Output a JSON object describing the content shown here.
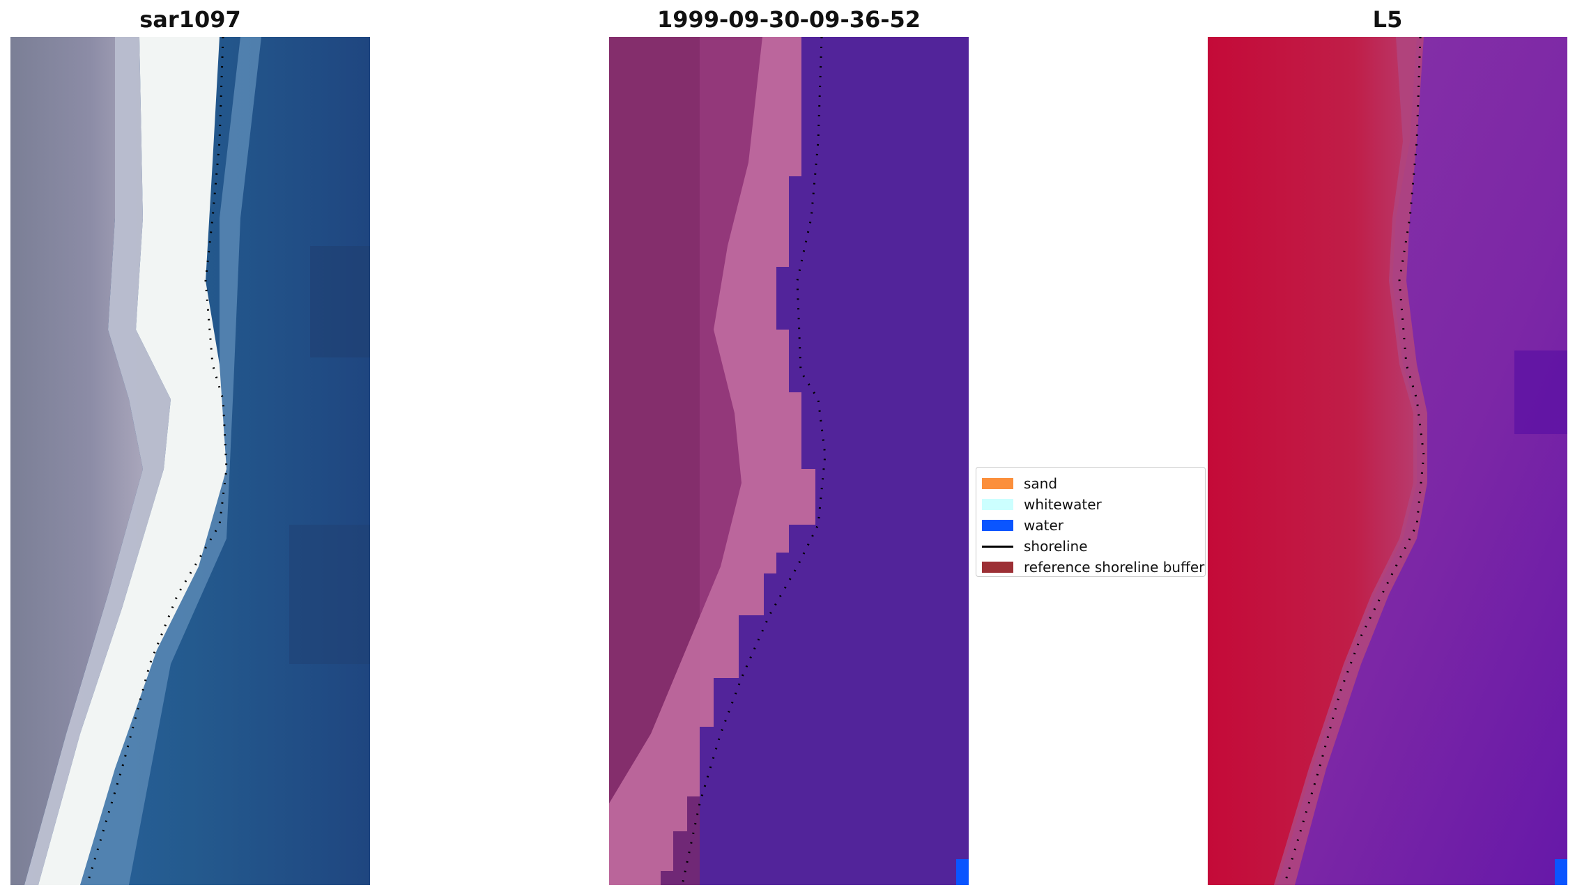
{
  "panels": [
    {
      "title": "sar1097",
      "kind": "rgb-image",
      "colors": {
        "sand_light": "#7b7f96",
        "sand_pale": "#a9a6bb",
        "whitewater": "#f2f5f4",
        "shallow": "#5c8bb6",
        "water": "#245a8e",
        "water_deep": "#1f3f72"
      }
    },
    {
      "title": "1999-09-30-09-36-52",
      "kind": "classified-image",
      "colors": {
        "land_dark": "#7e2b66",
        "land_mid": "#93387a",
        "land_pink": "#c06ba0",
        "water_class": "#52249a",
        "water_px": "#0a55ff"
      }
    },
    {
      "title": "L5",
      "kind": "index-image",
      "colors": {
        "land_red": "#c40a38",
        "land_red2": "#c01e48",
        "transition": "#b0457e",
        "water_purple": "#7c27a6",
        "water_purple2": "#6618a8",
        "water_px": "#0a55ff"
      }
    }
  ],
  "legend": {
    "items": [
      {
        "label": "sand",
        "color": "#fb8f3c",
        "type": "patch"
      },
      {
        "label": "whitewater",
        "color": "#ccffff",
        "type": "patch"
      },
      {
        "label": "water",
        "color": "#0a55ff",
        "type": "patch"
      },
      {
        "label": "shoreline",
        "color": "#000000",
        "type": "line"
      },
      {
        "label": "reference shoreline buffer",
        "color": "#9c2f35",
        "type": "patch"
      }
    ]
  },
  "shoreline_color": "#000000"
}
